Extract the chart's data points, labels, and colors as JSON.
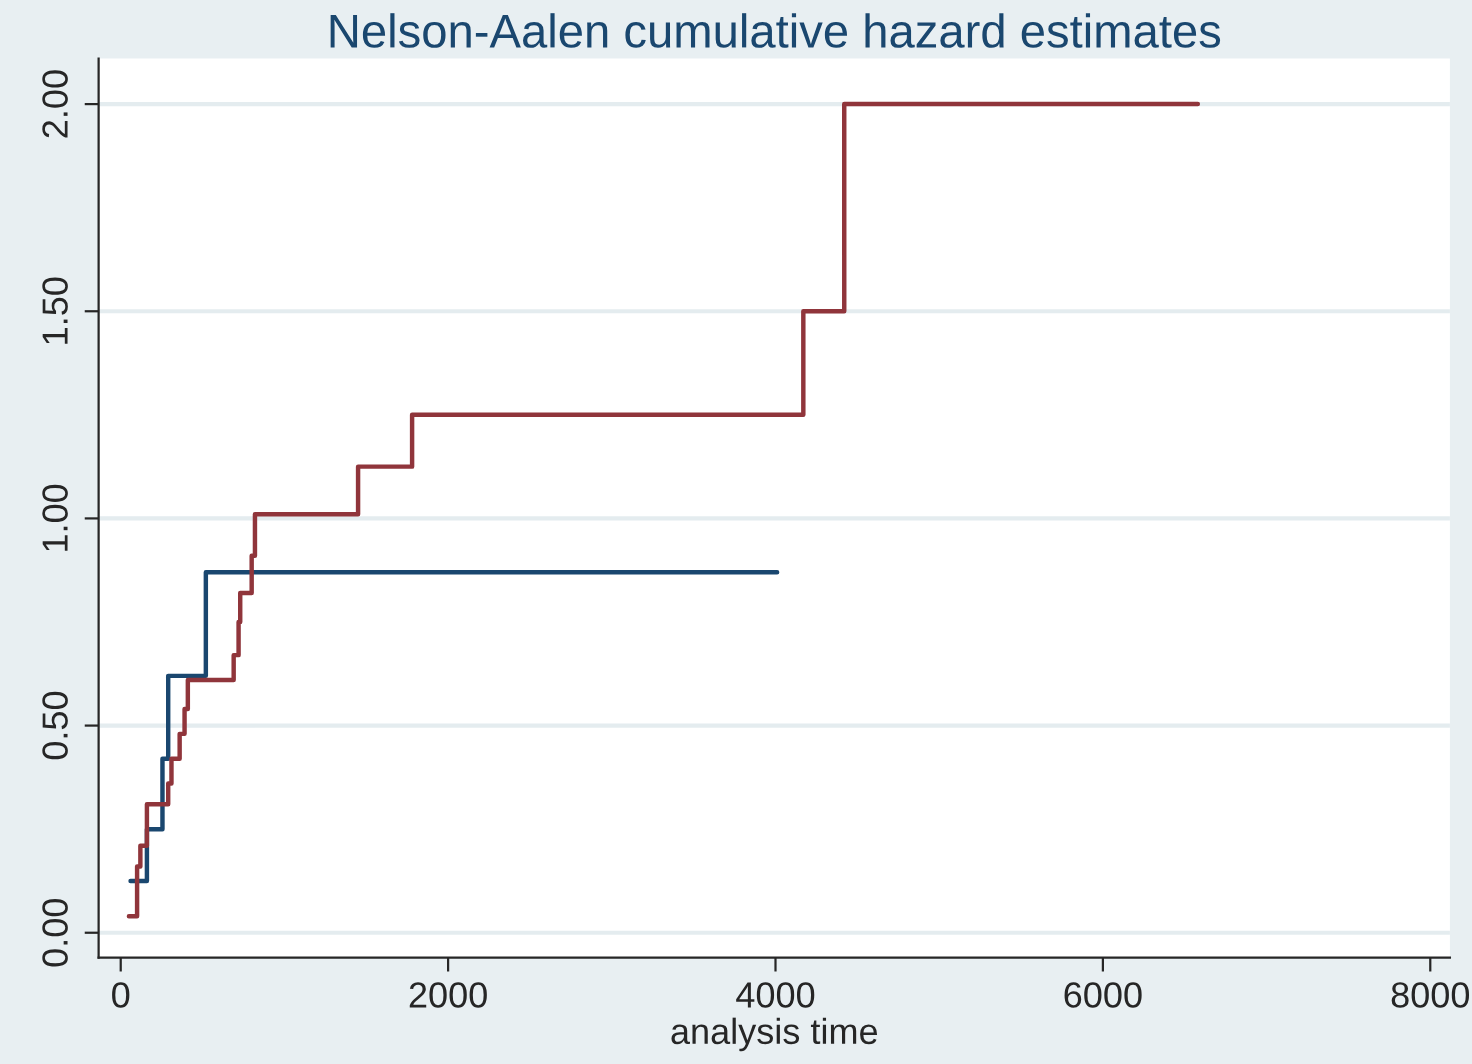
{
  "chart_data": {
    "type": "step",
    "title": "Nelson-Aalen cumulative hazard estimates",
    "xlabel": "analysis time",
    "xlim": [
      -135,
      8120
    ],
    "ylim": [
      -0.06,
      2.11
    ],
    "xticks": [
      0,
      2000,
      4000,
      6000,
      8000
    ],
    "yticks": [
      {
        "value": 0,
        "label": "0.00"
      },
      {
        "value": 0.5,
        "label": "0.50"
      },
      {
        "value": 1,
        "label": "1.00"
      },
      {
        "value": 1.5,
        "label": "1.50"
      },
      {
        "value": 2,
        "label": "2.00"
      }
    ],
    "grid": "y",
    "legend": false,
    "series": [
      {
        "color": "#1a476f",
        "x": [
          60,
          160,
          255,
          290,
          520,
          4010
        ],
        "values": [
          0.125,
          0.25,
          0.42,
          0.62,
          0.87,
          0.87
        ]
      },
      {
        "color": "#90353b",
        "x": [
          50,
          100,
          120,
          160,
          290,
          310,
          360,
          390,
          410,
          690,
          720,
          730,
          800,
          820,
          1450,
          1780,
          4170,
          4420,
          6580
        ],
        "values": [
          0.04,
          0.16,
          0.21,
          0.31,
          0.36,
          0.42,
          0.48,
          0.54,
          0.61,
          0.67,
          0.75,
          0.82,
          0.91,
          1.01,
          1.125,
          1.25,
          1.5,
          2.0,
          2.0
        ]
      }
    ]
  }
}
